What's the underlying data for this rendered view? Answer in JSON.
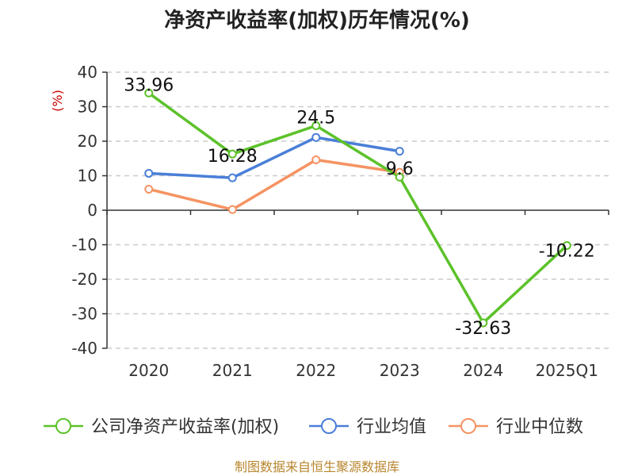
{
  "chart_data": {
    "type": "line",
    "title": "净资产收益率(加权)历年情况(%)",
    "ylabel": "(%)",
    "xlabel": "",
    "categories": [
      "2020",
      "2021",
      "2022",
      "2023",
      "2024",
      "2025Q1"
    ],
    "ylim": [
      -40,
      40
    ],
    "yticks": [
      40,
      30,
      20,
      10,
      0,
      -10,
      -20,
      -30,
      -40
    ],
    "ytick_labels": [
      "40",
      "30",
      "20",
      "10",
      "0",
      "-10",
      "-20",
      "-30",
      "-40"
    ],
    "grid": true,
    "legend_position": "bottom",
    "series": [
      {
        "key": "company",
        "name": "公司净资产收益率(加权)",
        "color": "#5cc22a",
        "values": [
          33.96,
          16.28,
          24.5,
          9.6,
          -32.63,
          -10.22
        ],
        "labels": [
          "33.96",
          "16.28",
          "24.5",
          "9.6",
          "-32.63",
          "-10.22"
        ]
      },
      {
        "key": "industry_avg",
        "name": "行业均值",
        "color": "#4a7fd8",
        "values": [
          10.7,
          9.4,
          21.1,
          17.1,
          null,
          null
        ],
        "labels": []
      },
      {
        "key": "industry_median",
        "name": "行业中位数",
        "color": "#f59363",
        "values": [
          6.1,
          0.2,
          14.6,
          11.0,
          null,
          null
        ],
        "labels": []
      }
    ]
  },
  "source": "制图数据来自恒生聚源数据库"
}
